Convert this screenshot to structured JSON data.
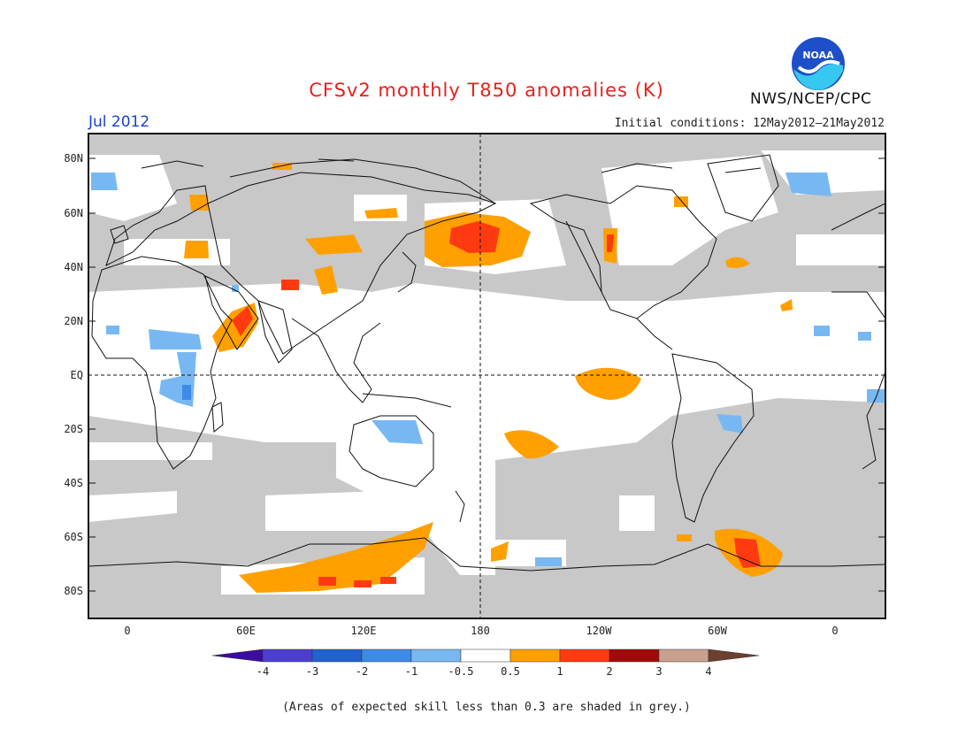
{
  "header": {
    "title": "CFSv2 monthly T850 anomalies (K)",
    "month": "Jul 2012",
    "initial_conditions": "Initial conditions: 12May2012–21May2012",
    "org": "NWS/NCEP/CPC",
    "logo_text": "NOAA"
  },
  "axes": {
    "lat_labels": [
      "80N",
      "60N",
      "40N",
      "20N",
      "EQ",
      "20S",
      "40S",
      "60S",
      "80S"
    ],
    "lon_labels": [
      "0",
      "60E",
      "120E",
      "180",
      "120W",
      "60W",
      "0"
    ]
  },
  "colorbar": {
    "labels": [
      "-4",
      "-3",
      "-2",
      "-1",
      "-0.5",
      "0.5",
      "1",
      "2",
      "3",
      "4"
    ],
    "colors": [
      "#3a0ca0",
      "#4a3fd0",
      "#1f62d0",
      "#3d8be8",
      "#78b8f2",
      "#ffffff",
      "#ffa000",
      "#ff3a10",
      "#a00a0a",
      "#c9a08e",
      "#6b4030"
    ]
  },
  "footnote": "(Areas of expected skill less than 0.3 are shaded in grey.)",
  "colors": {
    "grey_skill": "#c8c8c8",
    "title_red": "#e8201c",
    "month_blue": "#1a3fd6"
  }
}
